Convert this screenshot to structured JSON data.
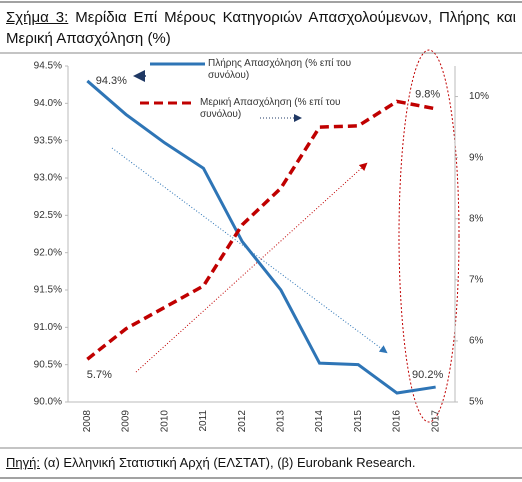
{
  "chart_data": {
    "type": "line",
    "figure_label": "Σχήμα 3:",
    "title": "Μερίδια Επί Μέρους Κατηγοριών Απασχολούμενων, Πλήρης και Μερική Απασχόληση (%)",
    "categories": [
      "2008",
      "2009",
      "2010",
      "2011",
      "2012",
      "2013",
      "2014",
      "2015",
      "2016",
      "2017"
    ],
    "series": [
      {
        "name": "Πλήρης Απασχόληση (% επί του συνόλου)",
        "color": "#2e75b6",
        "linestyle": "solid",
        "values": [
          94.3,
          93.85,
          93.47,
          93.13,
          92.15,
          91.5,
          90.52,
          90.5,
          90.12,
          90.2
        ],
        "value_labels": [
          "94.3%",
          null,
          null,
          null,
          null,
          null,
          null,
          null,
          null,
          "90.2%"
        ]
      },
      {
        "name": "Μερική Απασχόληση (% επί του συνόλου)",
        "color": "#c00000",
        "linestyle": "dashed",
        "axis": "y2",
        "values": [
          5.7,
          6.2,
          6.55,
          6.9,
          7.9,
          8.5,
          9.5,
          9.52,
          9.92,
          9.8
        ],
        "value_labels": [
          "5.7%",
          null,
          null,
          null,
          null,
          null,
          null,
          null,
          null,
          "9.8%"
        ]
      }
    ],
    "ylim": [
      90,
      94.5
    ],
    "yticks": [
      {
        "value": 90,
        "label": "90.0%"
      },
      {
        "value": 90.5,
        "label": "90.5%"
      },
      {
        "value": 91,
        "label": "91.0%"
      },
      {
        "value": 91.5,
        "label": "91.5%"
      },
      {
        "value": 92,
        "label": "92.0%"
      },
      {
        "value": 92.5,
        "label": "92.5%"
      },
      {
        "value": 93,
        "label": "93.0%"
      },
      {
        "value": 93.5,
        "label": "93.5%"
      },
      {
        "value": 94,
        "label": "94.0%"
      },
      {
        "value": 94.5,
        "label": "94.5%"
      }
    ],
    "y2lim": [
      5,
      10.5
    ],
    "y2ticks": [
      {
        "value": 5,
        "label": "5%"
      },
      {
        "value": 6,
        "label": "6%"
      },
      {
        "value": 7,
        "label": "7%"
      },
      {
        "value": 8,
        "label": "8%"
      },
      {
        "value": 9,
        "label": "9%"
      },
      {
        "value": 10,
        "label": "10%"
      }
    ],
    "source_label": "Πηγή:",
    "source": "(α) Ελληνική Στατιστική Αρχή (ΕΛΣΤΑΤ), (β) Eurobank Research."
  }
}
